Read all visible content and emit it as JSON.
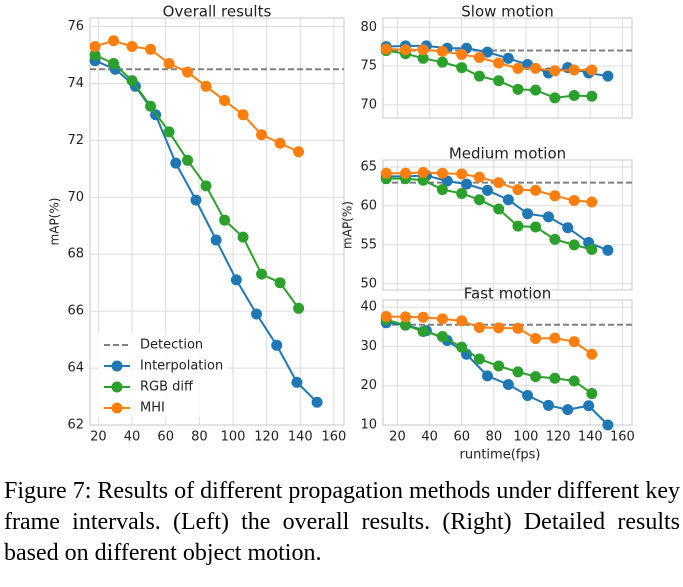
{
  "chart_data": [
    {
      "type": "line",
      "title": "Overall results",
      "ylabel": "mAP(%)",
      "xlim": [
        15,
        166
      ],
      "xticks": [
        20,
        40,
        60,
        80,
        100,
        120,
        140,
        160
      ],
      "ylim": [
        62,
        76.3
      ],
      "yticks": [
        62,
        64,
        66,
        68,
        70,
        72,
        74,
        76
      ],
      "grid": true,
      "legend": "lower left",
      "hline": {
        "name": "Detection",
        "value": 74.5,
        "color": "#808080"
      },
      "series": [
        {
          "name": "Interpolation",
          "color": "#1f77b4",
          "x": [
            18,
            30,
            42,
            54,
            66,
            78,
            90,
            102,
            114,
            126,
            138,
            150
          ],
          "values": [
            74.8,
            74.5,
            73.9,
            72.9,
            71.2,
            69.9,
            68.5,
            67.1,
            65.9,
            64.8,
            63.5,
            62.8
          ]
        },
        {
          "name": "RGB diff",
          "color": "#2ca02c",
          "x": [
            18,
            29,
            40,
            51,
            62,
            73,
            84,
            95,
            106,
            117,
            128,
            139
          ],
          "values": [
            75.0,
            74.7,
            74.1,
            73.2,
            72.3,
            71.3,
            70.4,
            69.2,
            68.6,
            67.3,
            67.0,
            66.1
          ]
        },
        {
          "name": "MHI",
          "color": "#ff7f0e",
          "x": [
            18,
            29,
            40,
            51,
            62,
            73,
            84,
            95,
            106,
            117,
            128,
            139
          ],
          "values": [
            75.3,
            75.5,
            75.3,
            75.2,
            74.7,
            74.4,
            73.9,
            73.4,
            72.9,
            72.2,
            71.9,
            71.6
          ]
        }
      ]
    },
    {
      "type": "line",
      "title": "Slow motion",
      "xlim": [
        11,
        166
      ],
      "xticks": [
        20,
        40,
        60,
        80,
        100,
        120,
        140,
        160
      ],
      "ylim": [
        68.3,
        81.2
      ],
      "yticks": [
        70,
        75,
        80
      ],
      "grid": true,
      "hline": {
        "value": 77.0,
        "color": "#808080"
      },
      "series": [
        {
          "color": "#1f77b4",
          "x": [
            13,
            25,
            38,
            51,
            63,
            76,
            89,
            101,
            114,
            126,
            139,
            151
          ],
          "values": [
            77.5,
            77.6,
            77.6,
            77.3,
            77.3,
            76.8,
            76.0,
            75.2,
            74.1,
            74.8,
            74.1,
            73.7
          ]
        },
        {
          "color": "#2ca02c",
          "x": [
            13,
            25,
            36,
            48,
            60,
            71,
            83,
            95,
            106,
            118,
            130,
            141
          ],
          "values": [
            77.0,
            76.6,
            76.0,
            75.5,
            74.8,
            73.7,
            73.1,
            72.0,
            71.9,
            70.9,
            71.2,
            71.1
          ]
        },
        {
          "color": "#ff7f0e",
          "x": [
            13,
            25,
            36,
            48,
            60,
            71,
            83,
            95,
            106,
            118,
            130,
            141
          ],
          "values": [
            77.2,
            77.1,
            77.1,
            76.9,
            76.5,
            76.1,
            75.4,
            74.7,
            74.7,
            74.4,
            74.5,
            74.5
          ]
        }
      ]
    },
    {
      "type": "line",
      "title": "Medium motion",
      "ylabel": "mAP(%)",
      "xlim": [
        11,
        166
      ],
      "xticks": [
        20,
        40,
        60,
        80,
        100,
        120,
        140,
        160
      ],
      "ylim": [
        49.2,
        65.9
      ],
      "yticks": [
        50,
        55,
        60,
        65
      ],
      "grid": true,
      "hline": {
        "value": 63.0,
        "color": "#808080"
      },
      "series": [
        {
          "color": "#1f77b4",
          "x": [
            13,
            25,
            38,
            51,
            63,
            76,
            89,
            101,
            114,
            126,
            139,
            151
          ],
          "values": [
            63.8,
            63.8,
            63.9,
            63.2,
            62.8,
            62.0,
            60.8,
            59.0,
            58.6,
            57.2,
            55.3,
            54.3
          ]
        },
        {
          "color": "#2ca02c",
          "x": [
            13,
            25,
            36,
            48,
            60,
            71,
            83,
            95,
            106,
            118,
            130,
            141
          ],
          "values": [
            63.5,
            63.5,
            63.3,
            62.1,
            61.6,
            60.8,
            59.6,
            57.4,
            57.3,
            55.7,
            55.0,
            54.4
          ]
        },
        {
          "color": "#ff7f0e",
          "x": [
            13,
            25,
            36,
            48,
            60,
            71,
            83,
            95,
            106,
            118,
            130,
            141
          ],
          "values": [
            64.2,
            64.2,
            64.3,
            64.2,
            64.1,
            63.7,
            63.0,
            62.1,
            62.0,
            61.3,
            60.7,
            60.5
          ]
        }
      ]
    },
    {
      "type": "line",
      "title": "Fast motion",
      "xlabel": "runtime(fps)",
      "xlim": [
        11,
        166
      ],
      "xticks": [
        20,
        40,
        60,
        80,
        100,
        120,
        140,
        160
      ],
      "ylim": [
        10,
        41.8
      ],
      "yticks": [
        10,
        20,
        30,
        40
      ],
      "grid": true,
      "hline": {
        "value": 35.5,
        "color": "#808080"
      },
      "series": [
        {
          "color": "#1f77b4",
          "x": [
            13,
            25,
            38,
            51,
            63,
            76,
            89,
            101,
            114,
            126,
            139,
            151
          ],
          "values": [
            36.0,
            35.4,
            34.0,
            31.5,
            28.0,
            22.5,
            20.3,
            17.5,
            15.0,
            13.9,
            14.9,
            10.0
          ]
        },
        {
          "color": "#2ca02c",
          "x": [
            13,
            25,
            36,
            48,
            60,
            71,
            83,
            95,
            106,
            118,
            130,
            141
          ],
          "values": [
            36.8,
            35.4,
            33.8,
            32.5,
            29.8,
            26.8,
            25.0,
            23.5,
            22.3,
            21.9,
            21.2,
            18.0
          ]
        },
        {
          "color": "#ff7f0e",
          "x": [
            13,
            25,
            36,
            48,
            60,
            71,
            83,
            95,
            106,
            118,
            130,
            141
          ],
          "values": [
            37.6,
            37.5,
            37.4,
            37.0,
            36.5,
            34.8,
            34.7,
            34.6,
            32.0,
            32.1,
            31.2,
            28.0
          ]
        }
      ]
    }
  ],
  "caption": "Figure 7: Results of different propagation methods under different key frame intervals. (Left) the overall results. (Right) Detailed results based on different object motion."
}
